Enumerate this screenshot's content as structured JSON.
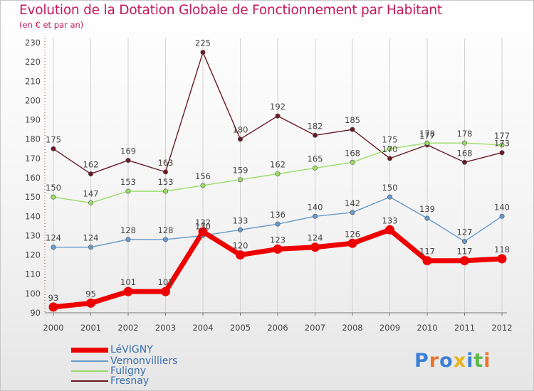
{
  "header": {
    "title": "Evolution de la Dotation Globale de Fonctionnement par Habitant",
    "subtitle": "(en € et par an)"
  },
  "logo": {
    "text": "Proxiti",
    "colors": [
      "#3b7fd4",
      "#e8742a",
      "#3b7fd4",
      "#e8b21a",
      "#3b7fd4",
      "#5db84a",
      "#e8742a"
    ]
  },
  "chart_data": {
    "type": "line",
    "title": "Evolution de la Dotation Globale de Fonctionnement par Habitant",
    "subtitle": "(en € et par an)",
    "x": [
      "2000",
      "2001",
      "2002",
      "2003",
      "2004",
      "2005",
      "2006",
      "2007",
      "2008",
      "2009",
      "2010",
      "2011",
      "2012"
    ],
    "ylim": [
      90,
      230
    ],
    "yticks": [
      90,
      100,
      110,
      120,
      130,
      140,
      150,
      160,
      170,
      180,
      190,
      200,
      210,
      220,
      230
    ],
    "grid": "vertical",
    "legend": "bottom-left",
    "series": [
      {
        "name": "LéVIGNY",
        "color": "#ee0000",
        "values": [
          93,
          95,
          101,
          101,
          132,
          120,
          123,
          124,
          126,
          133,
          117,
          117,
          118
        ]
      },
      {
        "name": "Vernonvilliers",
        "color": "#6699cc",
        "values": [
          124,
          124,
          128,
          128,
          130,
          133,
          136,
          140,
          142,
          150,
          139,
          127,
          140
        ]
      },
      {
        "name": "Fuligny",
        "color": "#99dd66",
        "values": [
          150,
          147,
          153,
          153,
          156,
          159,
          162,
          165,
          168,
          175,
          178,
          178,
          177
        ]
      },
      {
        "name": "Fresnay",
        "color": "#6b1a26",
        "values": [
          175,
          162,
          169,
          163,
          225,
          180,
          192,
          182,
          185,
          170,
          177,
          168,
          173
        ]
      }
    ]
  }
}
